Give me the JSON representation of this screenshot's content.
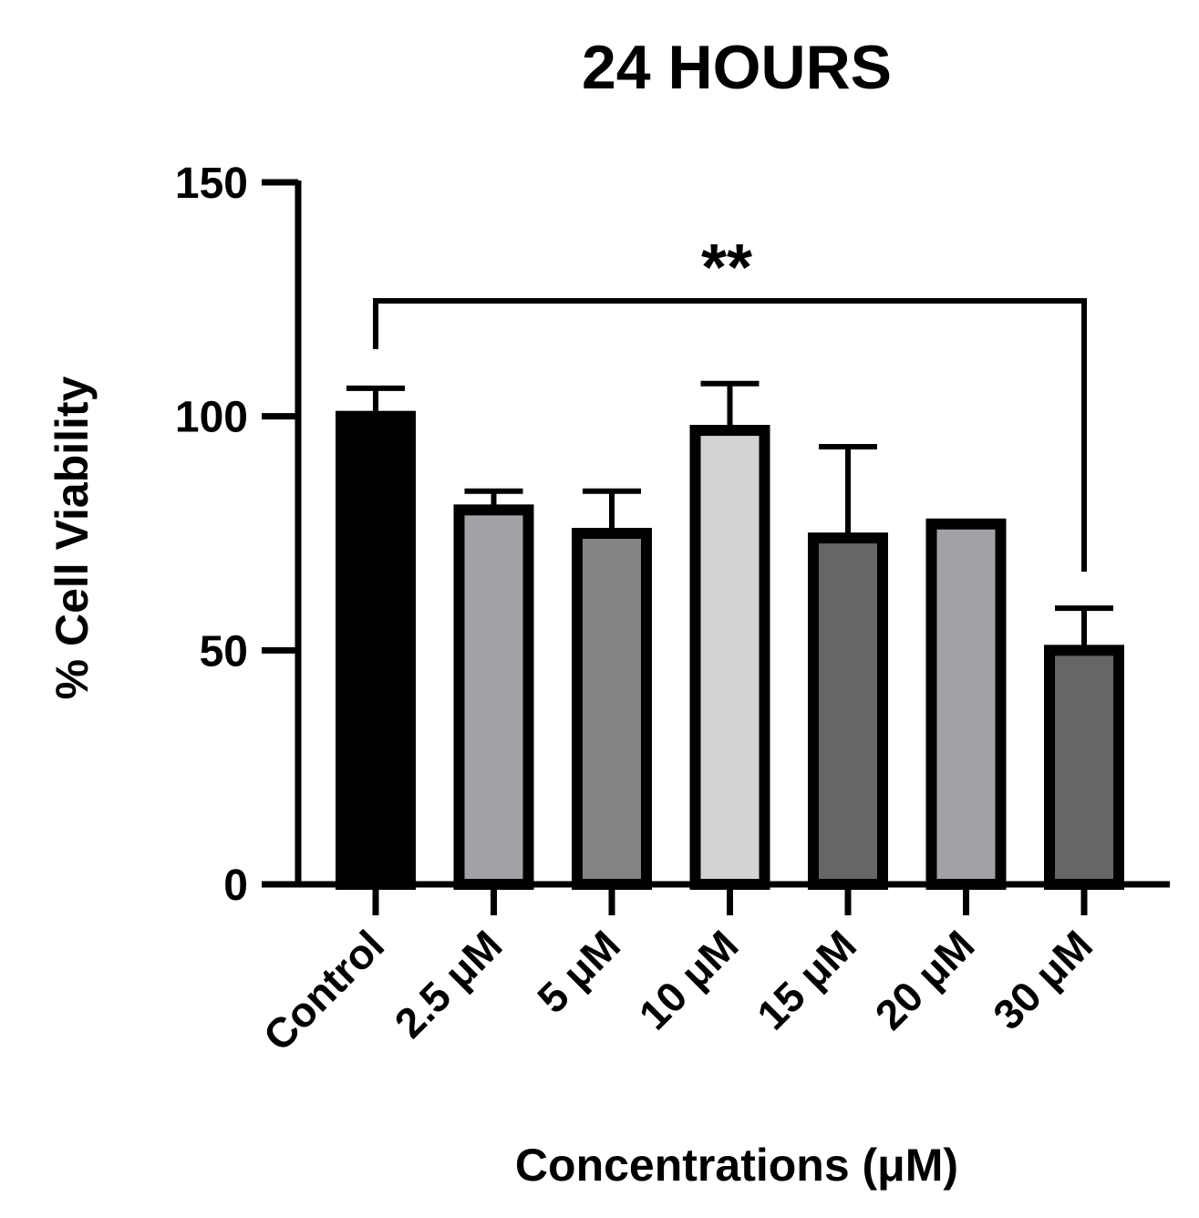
{
  "chart_data": {
    "type": "bar",
    "title": "24 HOURS",
    "xlabel": "Concentrations (μM)",
    "ylabel": "% Cell Viability",
    "ylim": [
      0,
      150
    ],
    "yticks": [
      0,
      50,
      100,
      150
    ],
    "grid": false,
    "categories": [
      "Control",
      "2.5 μM",
      "5 μM",
      "10 μM",
      "15 μM",
      "20 μM",
      "30 μM"
    ],
    "values": [
      100,
      80,
      75,
      97,
      74,
      77,
      50
    ],
    "errors": [
      6,
      4,
      9,
      10,
      19.5,
      0.5,
      9
    ],
    "colors": [
      "#000000",
      "#a2a2a6",
      "#848484",
      "#d3d3d3",
      "#666666",
      "#a2a2a6",
      "#666666"
    ],
    "significance": {
      "from": "Control",
      "to": "30 μM",
      "label": "**"
    }
  }
}
